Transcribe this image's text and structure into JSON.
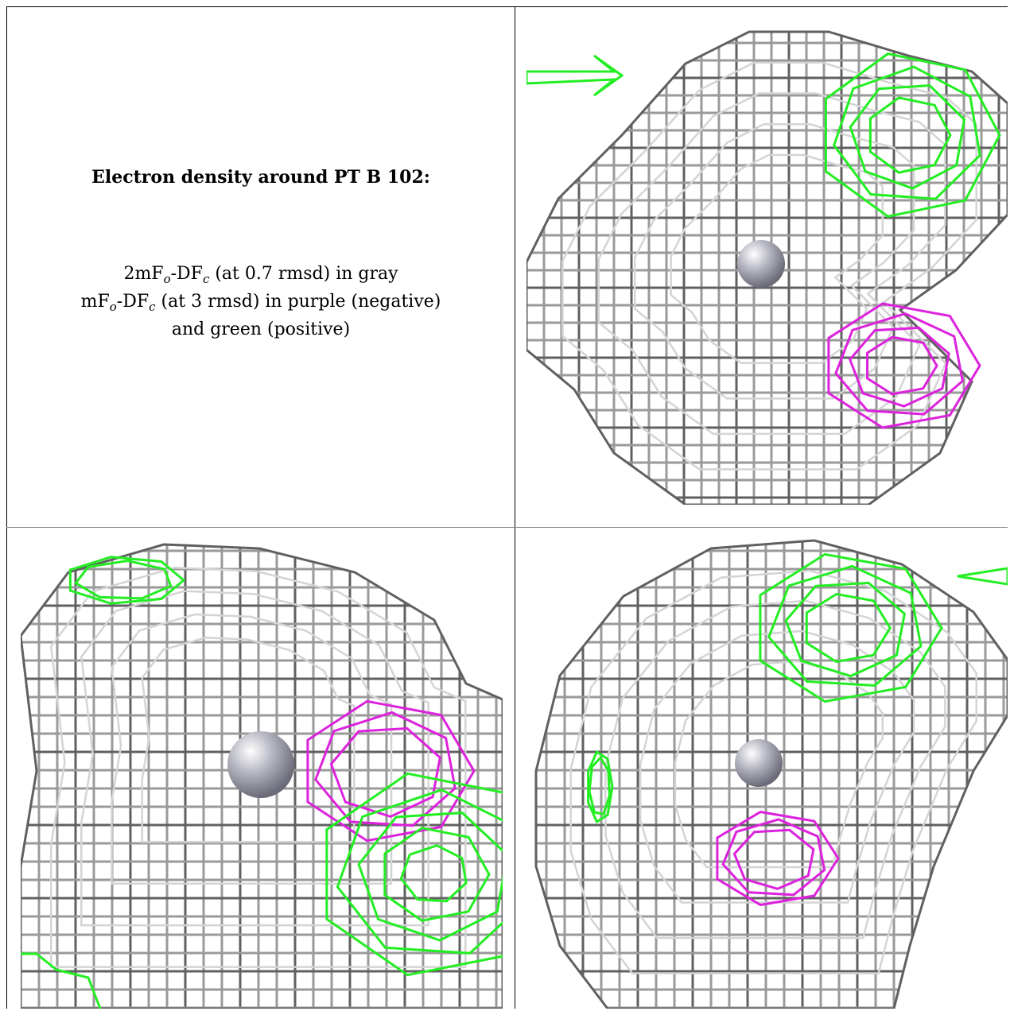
{
  "caption": {
    "title": "Electron density around PT B 102:",
    "line1": {
      "pre": "2mF",
      "sub1": "o",
      "mid": "-DF",
      "sub2": "c",
      "post": " (at 0.7 rmsd) in gray"
    },
    "line2": {
      "pre": "mF",
      "sub1": "o",
      "mid": "-DF",
      "sub2": "c",
      "post": " (at 3 rmsd) in purple (negative)"
    },
    "line3": "and green (positive)"
  },
  "colors": {
    "mesh_gray": "#9a9a9a",
    "mesh_dark": "#606060",
    "mesh_light": "#d4d4d4",
    "positive": "#22ee22",
    "negative": "#dd22dd",
    "atom": "#b8b8c4"
  },
  "panels": [
    {
      "name": "view-1"
    },
    {
      "name": "view-2"
    },
    {
      "name": "view-3"
    }
  ]
}
